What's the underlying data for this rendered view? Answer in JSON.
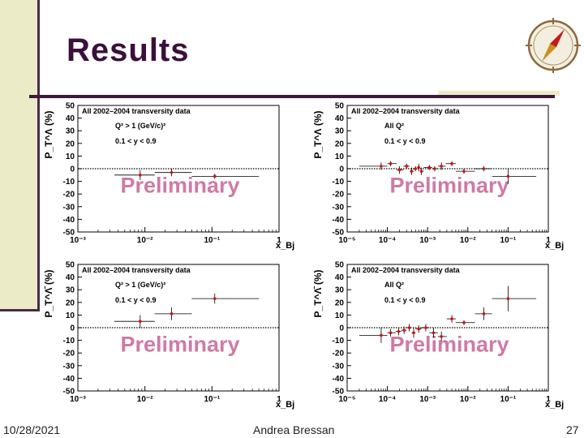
{
  "slide": {
    "title": "Results",
    "footer": {
      "date": "10/28/2021",
      "author": "Andrea Bressan",
      "page": "27"
    },
    "watermark": "Preliminary"
  },
  "colors": {
    "marker": "#d11010",
    "title": "#3b0f3b",
    "frame": "#3b1a3b",
    "band": "#ecebc7"
  },
  "chart_data": [
    {
      "type": "scatter",
      "title": "All 2002–2004 transversity data",
      "annotations": [
        "Q² > 1 (GeV/c)²",
        "0.1 < y < 0.9"
      ],
      "ylabel": "P_T^Λ (%)",
      "xlabel": "x_Bj",
      "x_scale": "log",
      "xlim": [
        0.001,
        1
      ],
      "ylim": [
        -50,
        50
      ],
      "x_ticks": [
        "10⁻³",
        "10⁻²",
        "10⁻¹",
        "1"
      ],
      "y_ticks": [
        "50",
        "40",
        "30",
        "20",
        "10",
        "0",
        "-10",
        "-20",
        "-30",
        "-40",
        "-50"
      ],
      "points": [
        {
          "x": 0.0085,
          "y": -5,
          "ey": 4,
          "xlo": 0.0035,
          "xhi": 0.014
        },
        {
          "x": 0.025,
          "y": -3,
          "ey": 3,
          "xlo": 0.014,
          "xhi": 0.05
        },
        {
          "x": 0.11,
          "y": -6,
          "ey": 2,
          "xlo": 0.05,
          "xhi": 0.5
        }
      ]
    },
    {
      "type": "scatter",
      "title": "All 2002–2004 transversity data",
      "annotations": [
        "All Q²",
        "0.1 < y < 0.9"
      ],
      "ylabel": "P_T^Λ (%)",
      "xlabel": "x_Bj",
      "x_scale": "log",
      "xlim": [
        1e-05,
        1
      ],
      "ylim": [
        -50,
        50
      ],
      "x_ticks": [
        "10⁻⁵",
        "10⁻⁴",
        "10⁻³",
        "10⁻²",
        "10⁻¹",
        "1"
      ],
      "y_ticks": [
        "50",
        "40",
        "30",
        "20",
        "10",
        "0",
        "-10",
        "-20",
        "-30",
        "-40",
        "-50"
      ],
      "points": [
        {
          "x": 7e-05,
          "y": 2,
          "ey": 3,
          "xlo": 2e-05,
          "xhi": 0.0001
        },
        {
          "x": 0.00012,
          "y": 4,
          "ey": 2,
          "xlo": 0.0001,
          "xhi": 0.00017
        },
        {
          "x": 0.0002,
          "y": -1,
          "ey": 3,
          "xlo": 0.00017,
          "xhi": 0.00025
        },
        {
          "x": 0.0003,
          "y": 2,
          "ey": 2,
          "xlo": 0.00025,
          "xhi": 0.00036
        },
        {
          "x": 0.0004,
          "y": -2,
          "ey": 3,
          "xlo": 0.00036,
          "xhi": 0.00045
        },
        {
          "x": 0.0005,
          "y": 0,
          "ey": 2,
          "xlo": 0.00045,
          "xhi": 0.00055
        },
        {
          "x": 0.0006,
          "y": 1,
          "ey": 3,
          "xlo": 0.00055,
          "xhi": 0.00065
        },
        {
          "x": 0.0007,
          "y": -2,
          "ey": 3,
          "xlo": 0.00065,
          "xhi": 0.0008
        },
        {
          "x": 0.0011,
          "y": 1,
          "ey": 2,
          "xlo": 0.0008,
          "xhi": 0.0013
        },
        {
          "x": 0.0015,
          "y": 0,
          "ey": 2,
          "xlo": 0.0013,
          "xhi": 0.0018
        },
        {
          "x": 0.0022,
          "y": 2,
          "ey": 3,
          "xlo": 0.0018,
          "xhi": 0.0028
        },
        {
          "x": 0.004,
          "y": 4,
          "ey": 2,
          "xlo": 0.0028,
          "xhi": 0.005
        },
        {
          "x": 0.008,
          "y": -2,
          "ey": 2,
          "xlo": 0.005,
          "xhi": 0.015
        },
        {
          "x": 0.025,
          "y": 0,
          "ey": 2,
          "xlo": 0.015,
          "xhi": 0.04
        },
        {
          "x": 0.1,
          "y": -6,
          "ey": 6,
          "xlo": 0.04,
          "xhi": 0.5
        }
      ]
    },
    {
      "type": "scatter",
      "title": "All 2002–2004 transversity data",
      "annotations": [
        "Q² > 1 (GeV/c)²",
        "0.1 < y < 0.9"
      ],
      "ylabel": "P_T^Λ̄ (%)",
      "xlabel": "x_Bj",
      "x_scale": "log",
      "xlim": [
        0.001,
        1
      ],
      "ylim": [
        -50,
        50
      ],
      "x_ticks": [
        "10⁻³",
        "10⁻²",
        "10⁻¹",
        "1"
      ],
      "y_ticks": [
        "50",
        "40",
        "30",
        "20",
        "10",
        "0",
        "-10",
        "-20",
        "-30",
        "-40",
        "-50"
      ],
      "points": [
        {
          "x": 0.0085,
          "y": 5,
          "ey": 5,
          "xlo": 0.0035,
          "xhi": 0.014
        },
        {
          "x": 0.025,
          "y": 11,
          "ey": 5,
          "xlo": 0.014,
          "xhi": 0.05
        },
        {
          "x": 0.11,
          "y": 23,
          "ey": 4,
          "xlo": 0.05,
          "xhi": 0.5
        }
      ]
    },
    {
      "type": "scatter",
      "title": "All 2002–2004 transversity data",
      "annotations": [
        "All Q²",
        "0.1 < y < 0.9"
      ],
      "ylabel": "P_T^Λ̄ (%)",
      "xlabel": "x_Bj",
      "x_scale": "log",
      "xlim": [
        1e-05,
        1
      ],
      "ylim": [
        -50,
        50
      ],
      "x_ticks": [
        "10⁻⁵",
        "10⁻⁴",
        "10⁻³",
        "10⁻²",
        "10⁻¹",
        "1"
      ],
      "y_ticks": [
        "50",
        "40",
        "30",
        "20",
        "10",
        "0",
        "-10",
        "-20",
        "-30",
        "-40",
        "-50"
      ],
      "points": [
        {
          "x": 7e-05,
          "y": -6,
          "ey": 6,
          "xlo": 2e-05,
          "xhi": 0.0001
        },
        {
          "x": 0.00012,
          "y": -4,
          "ey": 3,
          "xlo": 0.0001,
          "xhi": 0.00016
        },
        {
          "x": 0.00019,
          "y": -3,
          "ey": 3,
          "xlo": 0.00016,
          "xhi": 0.00022
        },
        {
          "x": 0.00026,
          "y": -2,
          "ey": 3,
          "xlo": 0.00022,
          "xhi": 0.0003
        },
        {
          "x": 0.00035,
          "y": 0,
          "ey": 3,
          "xlo": 0.0003,
          "xhi": 0.0004
        },
        {
          "x": 0.00045,
          "y": -4,
          "ey": 4,
          "xlo": 0.0004,
          "xhi": 0.0005
        },
        {
          "x": 0.0006,
          "y": -1,
          "ey": 3,
          "xlo": 0.0005,
          "xhi": 0.0007
        },
        {
          "x": 0.0009,
          "y": 0,
          "ey": 3,
          "xlo": 0.0007,
          "xhi": 0.0011
        },
        {
          "x": 0.0014,
          "y": -4,
          "ey": 4,
          "xlo": 0.0011,
          "xhi": 0.0018
        },
        {
          "x": 0.0022,
          "y": -7,
          "ey": 4,
          "xlo": 0.0018,
          "xhi": 0.003
        },
        {
          "x": 0.004,
          "y": 7,
          "ey": 3,
          "xlo": 0.003,
          "xhi": 0.005
        },
        {
          "x": 0.008,
          "y": 4,
          "ey": 2,
          "xlo": 0.005,
          "xhi": 0.015
        },
        {
          "x": 0.025,
          "y": 11,
          "ey": 5,
          "xlo": 0.015,
          "xhi": 0.04
        },
        {
          "x": 0.1,
          "y": 23,
          "ey": 10,
          "xlo": 0.04,
          "xhi": 0.5
        }
      ]
    }
  ]
}
